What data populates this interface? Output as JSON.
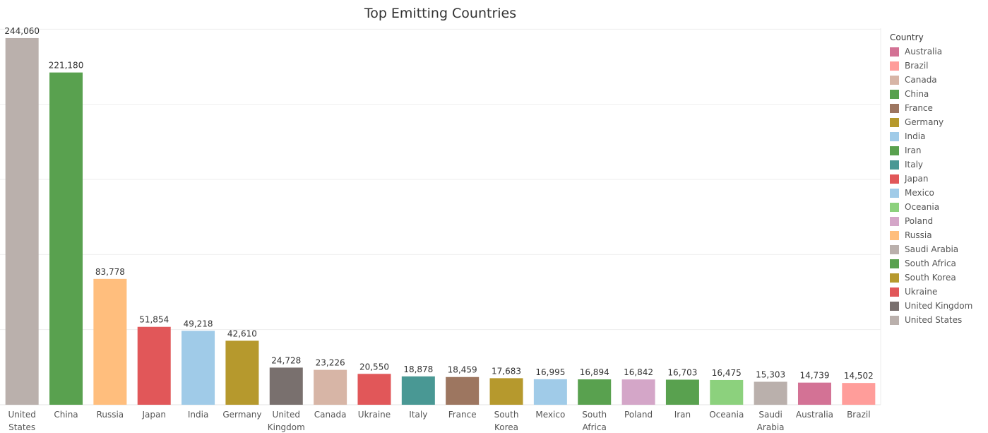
{
  "chart_data": {
    "type": "bar",
    "title": "Top Emitting Countries",
    "xlabel": "",
    "ylabel": "",
    "ylim": [
      0,
      250000
    ],
    "grid": "horizontal",
    "legend_position": "right",
    "categories": [
      [
        "United",
        "States"
      ],
      [
        "China"
      ],
      [
        "Russia"
      ],
      [
        "Japan"
      ],
      [
        "India"
      ],
      [
        "Germany"
      ],
      [
        "United",
        "Kingdom"
      ],
      [
        "Canada"
      ],
      [
        "Ukraine"
      ],
      [
        "Italy"
      ],
      [
        "France"
      ],
      [
        "South",
        "Korea"
      ],
      [
        "Mexico"
      ],
      [
        "South",
        "Africa"
      ],
      [
        "Poland"
      ],
      [
        "Iran"
      ],
      [
        "Oceania"
      ],
      [
        "Saudi",
        "Arabia"
      ],
      [
        "Australia"
      ],
      [
        "Brazil"
      ]
    ],
    "values": [
      244060,
      221180,
      83778,
      51854,
      49218,
      42610,
      24728,
      23226,
      20550,
      18878,
      18459,
      17683,
      16995,
      16894,
      16842,
      16703,
      16475,
      15303,
      14739,
      14502
    ],
    "value_labels": [
      "244,060",
      "221,180",
      "83,778",
      "51,854",
      "49,218",
      "42,610",
      "24,728",
      "23,226",
      "20,550",
      "18,878",
      "18,459",
      "17,683",
      "16,995",
      "16,894",
      "16,842",
      "16,703",
      "16,475",
      "15,303",
      "14,739",
      "14,502"
    ],
    "colors": [
      "#bab0ac",
      "#59a14f",
      "#ffbe7d",
      "#e15759",
      "#a0cbe8",
      "#b6992d",
      "#79706e",
      "#d7b5a6",
      "#e15759",
      "#499894",
      "#9d7660",
      "#b6992d",
      "#a0cbe8",
      "#59a14f",
      "#d4a6c8",
      "#59a14f",
      "#8cd17d",
      "#bab0ac",
      "#d37295",
      "#ff9d9a"
    ]
  },
  "legend": {
    "title": "Country",
    "items": [
      {
        "label": "Australia",
        "color": "#d37295"
      },
      {
        "label": "Brazil",
        "color": "#ff9d9a"
      },
      {
        "label": "Canada",
        "color": "#d7b5a6"
      },
      {
        "label": "China",
        "color": "#59a14f"
      },
      {
        "label": "France",
        "color": "#9d7660"
      },
      {
        "label": "Germany",
        "color": "#b6992d"
      },
      {
        "label": "India",
        "color": "#a0cbe8"
      },
      {
        "label": "Iran",
        "color": "#59a14f"
      },
      {
        "label": "Italy",
        "color": "#499894"
      },
      {
        "label": "Japan",
        "color": "#e15759"
      },
      {
        "label": "Mexico",
        "color": "#a0cbe8"
      },
      {
        "label": "Oceania",
        "color": "#8cd17d"
      },
      {
        "label": "Poland",
        "color": "#d4a6c8"
      },
      {
        "label": "Russia",
        "color": "#ffbe7d"
      },
      {
        "label": "Saudi Arabia",
        "color": "#bab0ac"
      },
      {
        "label": "South Africa",
        "color": "#59a14f"
      },
      {
        "label": "South Korea",
        "color": "#b6992d"
      },
      {
        "label": "Ukraine",
        "color": "#e15759"
      },
      {
        "label": "United Kingdom",
        "color": "#79706e"
      },
      {
        "label": "United States",
        "color": "#bab0ac"
      }
    ]
  }
}
